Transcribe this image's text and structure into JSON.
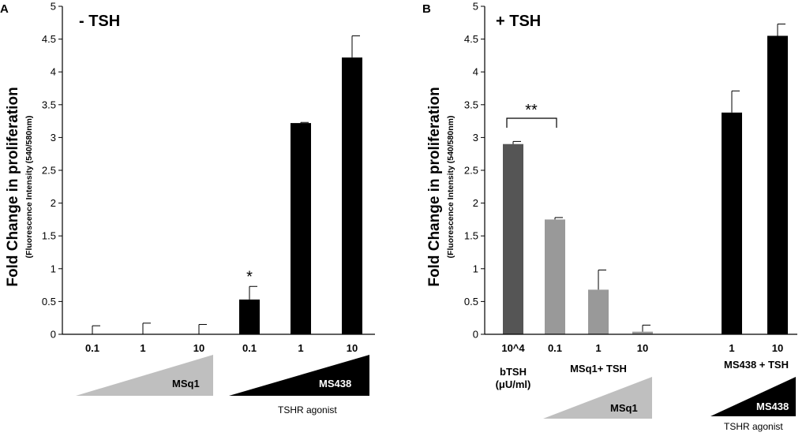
{
  "chart_data": [
    {
      "panel": "A",
      "type": "bar",
      "title": "- TSH",
      "ylabel": "Fold Change in proliferation",
      "ylabel_sub": "(Fluorescence Intensity (540/580nm)",
      "ylim": [
        0,
        5
      ],
      "yticks": [
        "0",
        "0.5",
        "1",
        "1.5",
        "2",
        "2.5",
        "3",
        "3.5",
        "4",
        "4.5",
        "5"
      ],
      "categories": [
        "0.1",
        "1",
        "10",
        "0.1",
        "1",
        "10"
      ],
      "values": [
        0,
        0,
        0,
        0.53,
        3.22,
        4.22
      ],
      "errors": [
        0.13,
        0.17,
        0.15,
        0.2,
        0.01,
        0.33
      ],
      "colors": [
        "#000000",
        "#000000",
        "#000000",
        "#000000",
        "#000000",
        "#000000"
      ],
      "annotations": [
        "",
        "",
        "",
        "*",
        "",
        ""
      ],
      "groups": [
        {
          "label": "MSq1",
          "color": "#bfbfbf",
          "text_color": "#000000"
        },
        {
          "label": "MS438",
          "color": "#000000",
          "text_color": "#ffffff",
          "note": "TSHR agonist"
        }
      ]
    },
    {
      "panel": "B",
      "type": "bar",
      "title": "+ TSH",
      "ylabel": "Fold Change in proliferation",
      "ylabel_sub": "(Fluorescence Intensity (540/580nm)",
      "ylim": [
        0,
        5
      ],
      "yticks": [
        "0",
        "0.5",
        "1",
        "1.5",
        "2",
        "2.5",
        "3",
        "3.5",
        "4",
        "4.5",
        "5"
      ],
      "categories": [
        "10^4",
        "0.1",
        "1",
        "10",
        "1",
        "10"
      ],
      "values": [
        2.9,
        1.75,
        0.68,
        0.04,
        3.38,
        4.55
      ],
      "errors": [
        0.04,
        0.03,
        0.3,
        0.1,
        0.33,
        0.18
      ],
      "colors": [
        "#555555",
        "#999999",
        "#999999",
        "#999999",
        "#000000",
        "#000000"
      ],
      "significance": {
        "label": "**",
        "between": [
          0,
          1
        ]
      },
      "sublabels": {
        "btsh": "bTSH",
        "btsh_unit": "(μU/ml)",
        "msq1": "MSq1+ TSH",
        "ms438": "MS438 + TSH"
      },
      "groups": [
        {
          "label": "MSq1",
          "color": "#bfbfbf",
          "text_color": "#000000"
        },
        {
          "label": "MS438",
          "color": "#000000",
          "text_color": "#ffffff",
          "note": "TSHR agonist"
        }
      ]
    }
  ]
}
